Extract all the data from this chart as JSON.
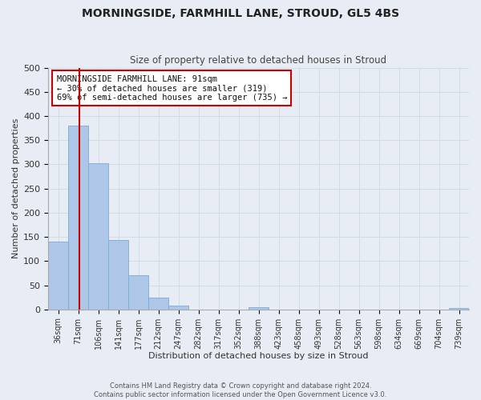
{
  "title1": "MORNINGSIDE, FARMHILL LANE, STROUD, GL5 4BS",
  "title2": "Size of property relative to detached houses in Stroud",
  "xlabel": "Distribution of detached houses by size in Stroud",
  "ylabel": "Number of detached properties",
  "bin_labels": [
    "36sqm",
    "71sqm",
    "106sqm",
    "141sqm",
    "177sqm",
    "212sqm",
    "247sqm",
    "282sqm",
    "317sqm",
    "352sqm",
    "388sqm",
    "423sqm",
    "458sqm",
    "493sqm",
    "528sqm",
    "563sqm",
    "598sqm",
    "634sqm",
    "669sqm",
    "704sqm",
    "739sqm"
  ],
  "bin_values": [
    140,
    380,
    303,
    143,
    70,
    25,
    8,
    0,
    0,
    0,
    5,
    0,
    0,
    0,
    0,
    0,
    0,
    0,
    0,
    0,
    3
  ],
  "bar_color": "#aec6e8",
  "bar_edge_color": "#7aadd4",
  "vline_color": "#cc0000",
  "annotation_title": "MORNINGSIDE FARMHILL LANE: 91sqm",
  "annotation_line2": "← 30% of detached houses are smaller (319)",
  "annotation_line3": "69% of semi-detached houses are larger (735) →",
  "annotation_box_color": "#ffffff",
  "annotation_box_edge": "#cc0000",
  "grid_color": "#d0dcea",
  "background_color": "#e8edf5",
  "footer1": "Contains HM Land Registry data © Crown copyright and database right 2024.",
  "footer2": "Contains public sector information licensed under the Open Government Licence v3.0.",
  "ylim": [
    0,
    500
  ],
  "yticks": [
    0,
    50,
    100,
    150,
    200,
    250,
    300,
    350,
    400,
    450,
    500
  ]
}
